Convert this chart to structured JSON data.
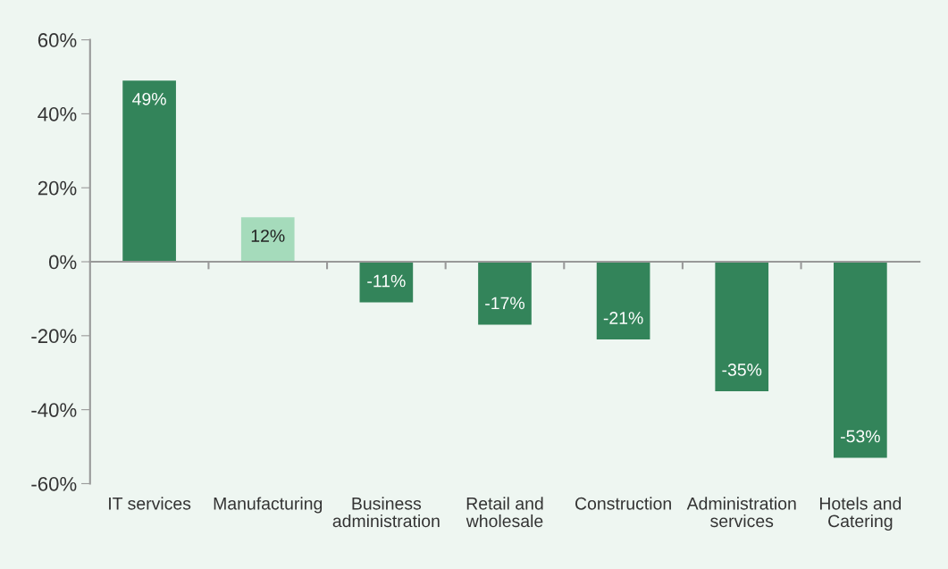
{
  "chart_data": {
    "type": "bar",
    "categories": [
      "IT services",
      "Manufacturing",
      "Business\nadministration",
      "Retail and\nwholesale",
      "Construction",
      "Administration\nservices",
      "Hotels and\nCatering"
    ],
    "values": [
      49,
      12,
      -11,
      -17,
      -21,
      -35,
      -53
    ],
    "colors": [
      "#33845a",
      "#a5dbbb",
      "#33845a",
      "#33845a",
      "#33845a",
      "#33845a",
      "#33845a"
    ],
    "value_labels": [
      "49%",
      "12%",
      "-11%",
      "-17%",
      "-21%",
      "-35%",
      "-53%"
    ],
    "ylim": [
      -60,
      60
    ],
    "yticks": [
      {
        "value": -60,
        "label": "-60%"
      },
      {
        "value": -40,
        "label": "-40%"
      },
      {
        "value": -20,
        "label": "-20%"
      },
      {
        "value": 0,
        "label": "0%"
      },
      {
        "value": 20,
        "label": "20%"
      },
      {
        "value": 40,
        "label": "40%"
      },
      {
        "value": 60,
        "label": "60%"
      }
    ],
    "legend": false
  }
}
